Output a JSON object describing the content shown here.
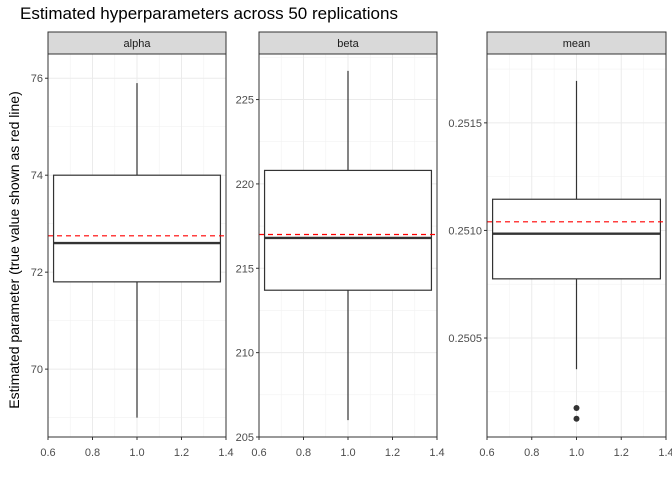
{
  "chart_data": {
    "type": "boxplot",
    "title": "Estimated hyperparameters across 50 replications",
    "xlabel": "",
    "ylabel": "Estimated parameter (true value shown as red line)",
    "grid": true,
    "reference_line": {
      "style": "dashed",
      "color": "#ff0000"
    },
    "colors": {
      "strip_bg": "#d9d9d9",
      "box": "#333333",
      "grid": "#ebebeb"
    },
    "panels": [
      {
        "name": "alpha",
        "xlim": [
          0.6,
          1.4
        ],
        "x_ticks": [
          "0.6",
          "0.8",
          "1.0",
          "1.2",
          "1.4"
        ],
        "ylim": [
          68.6,
          76.5
        ],
        "y_ticks": [
          70,
          72,
          74,
          76
        ],
        "y_tick_labels": [
          "70",
          "72",
          "74",
          "76"
        ],
        "box": {
          "x": 1.0,
          "min": 69.0,
          "q1": 71.8,
          "median": 72.6,
          "q3": 74.0,
          "max": 75.9,
          "outliers": []
        },
        "true_value": 72.75
      },
      {
        "name": "beta",
        "xlim": [
          0.6,
          1.4
        ],
        "x_ticks": [
          "0.6",
          "0.8",
          "1.0",
          "1.2",
          "1.4"
        ],
        "ylim": [
          205,
          227.7
        ],
        "y_ticks": [
          205,
          210,
          215,
          220,
          225
        ],
        "y_tick_labels": [
          "205",
          "210",
          "215",
          "220",
          "225"
        ],
        "box": {
          "x": 1.0,
          "min": 206.0,
          "q1": 213.7,
          "median": 216.8,
          "q3": 220.8,
          "max": 226.7,
          "outliers": []
        },
        "true_value": 217.0
      },
      {
        "name": "mean",
        "xlim": [
          0.6,
          1.4
        ],
        "x_ticks": [
          "0.6",
          "0.8",
          "1.0",
          "1.2",
          "1.4"
        ],
        "ylim": [
          0.25004,
          0.25182
        ],
        "y_ticks": [
          0.2505,
          0.251,
          0.2515
        ],
        "y_tick_labels": [
          "0.2505",
          "0.2510",
          "0.2515"
        ],
        "box": {
          "x": 1.0,
          "min": 0.250355,
          "q1": 0.250775,
          "median": 0.250985,
          "q3": 0.251145,
          "max": 0.251695,
          "outliers": [
            0.250175,
            0.250125
          ]
        },
        "true_value": 0.25104
      }
    ]
  }
}
